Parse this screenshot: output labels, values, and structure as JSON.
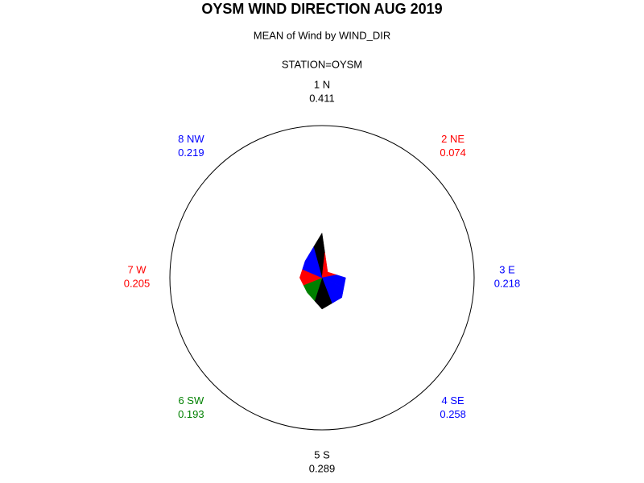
{
  "chart_data": {
    "type": "star",
    "title": "OYSM WIND DIRECTION AUG 2019",
    "subtitle": "MEAN of Wind by WIND_DIR",
    "by_line": "STATION=OYSM",
    "categories": [
      "1 N",
      "2 NE",
      "3 E",
      "4 SE",
      "5 S",
      "6 SW",
      "7 W",
      "8 NW"
    ],
    "values": [
      0.411,
      0.074,
      0.218,
      0.258,
      0.289,
      0.193,
      0.205,
      0.219
    ],
    "colors": [
      "#000000",
      "#ff0000",
      "#0000ff",
      "#0000ff",
      "#000000",
      "#008000",
      "#ff0000",
      "#0000ff"
    ],
    "rlim": [
      0,
      1.4
    ]
  }
}
